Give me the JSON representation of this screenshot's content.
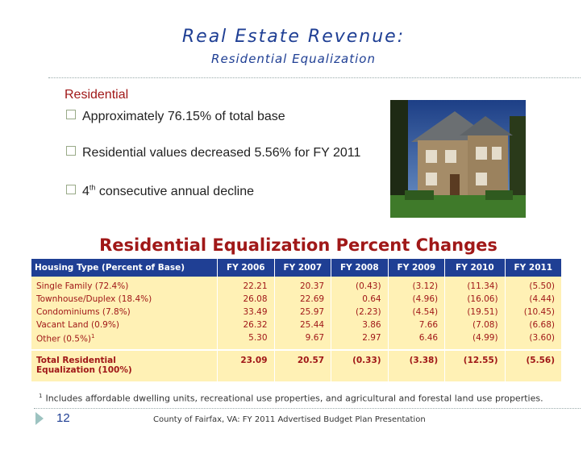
{
  "slide": {
    "title": "Real Estate Revenue:",
    "subtitle": "Residential Equalization"
  },
  "content": {
    "section_label": "Residential",
    "bullets": {
      "b1": "Approximately 76.15% of total base",
      "b2": "Residential values decreased 5.56% for FY 2011",
      "b3_number": "4",
      "b3_super": "th",
      "b3_rest": " consecutive annual decline"
    }
  },
  "photo": {
    "icon": "house-photo"
  },
  "table": {
    "title": "Residential Equalization Percent Changes",
    "headers": [
      "Housing Type (Percent of Base)",
      "FY 2006",
      "FY 2007",
      "FY 2008",
      "FY 2009",
      "FY 2010",
      "FY 2011"
    ],
    "rows": [
      {
        "type": "Single Family (72.4%)",
        "values": [
          "22.21",
          "20.37",
          "(0.43)",
          "(3.12)",
          "(11.34)",
          "(5.50)"
        ]
      },
      {
        "type": "Townhouse/Duplex (18.4%)",
        "values": [
          "26.08",
          "22.69",
          "0.64",
          "(4.96)",
          "(16.06)",
          "(4.44)"
        ]
      },
      {
        "type": "Condominiums (7.8%)",
        "values": [
          "33.49",
          "25.97",
          "(2.23)",
          "(4.54)",
          "(19.51)",
          "(10.45)"
        ]
      },
      {
        "type": "Vacant Land (0.9%)",
        "values": [
          "26.32",
          "25.44",
          "3.86",
          "7.66",
          "(7.08)",
          "(6.68)"
        ]
      },
      {
        "type": "Other (0.5%)",
        "type_super": "1",
        "values": [
          "5.30",
          "9.67",
          "2.97",
          "6.46",
          "(4.99)",
          "(3.60)"
        ]
      }
    ],
    "total": {
      "label_line1": "Total Residential",
      "label_line2": "Equalization (100%)",
      "values": [
        "23.09",
        "20.57",
        "(0.33)",
        "(3.38)",
        "(12.55)",
        "(5.56)"
      ]
    }
  },
  "footnote": {
    "marker": "1",
    "text": "Includes affordable dwelling units, recreational use properties, and agricultural and forestal land use properties."
  },
  "footer": {
    "page_number": "12",
    "text": "County of Fairfax, VA: FY 2011 Advertised Budget Plan Presentation"
  },
  "colors": {
    "title_blue": "#1f3f94",
    "accent_red": "#a01818",
    "table_fill": "#fff1b5",
    "chevron_teal": "#9dc3c1"
  }
}
